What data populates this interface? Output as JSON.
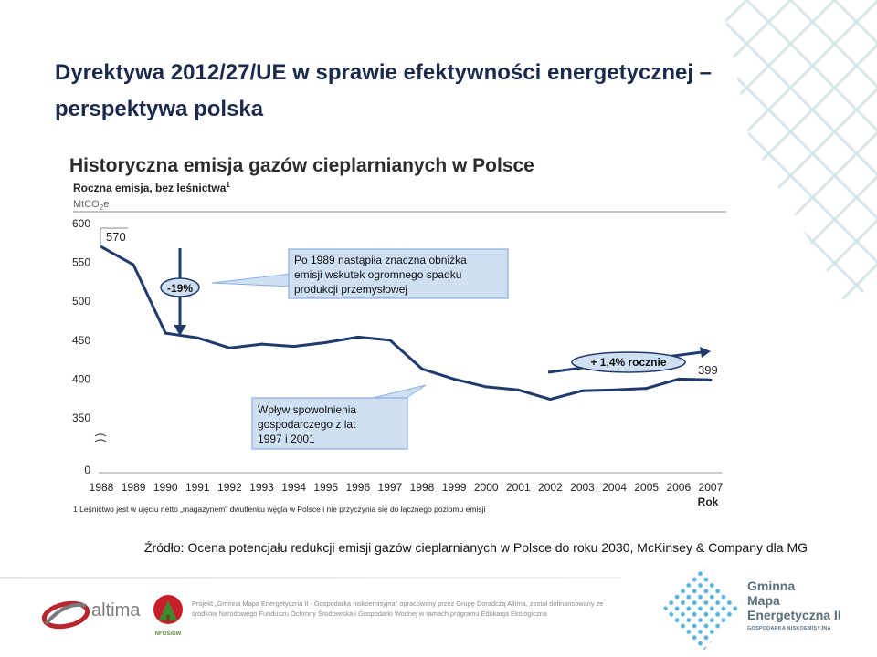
{
  "slide": {
    "title": "Dyrektywa 2012/27/UE w sprawie efektywności energetycznej – perspektywa polska",
    "subtitle": "Historyczna emisja gazów cieplarnianych w Polsce",
    "source": "Źródło: Ocena potencjału redukcji emisji gazów cieplarnianych w Polsce do roku 2030, McKinsey & Company dla MG"
  },
  "chart_data": {
    "type": "line",
    "title": "Roczna emisja, bez leśnictwa",
    "title_superscript": "1",
    "unit_prefix": "MtCO",
    "unit_sub": "2",
    "unit_suffix": "e",
    "xlabel": "Rok",
    "x": [
      1988,
      1989,
      1990,
      1991,
      1992,
      1993,
      1994,
      1995,
      1996,
      1997,
      1998,
      1999,
      2000,
      2001,
      2002,
      2003,
      2004,
      2005,
      2006,
      2007
    ],
    "x_tick_labels": [
      "1988",
      "1989",
      "1990",
      "1991",
      "1992",
      "1993",
      "1994",
      "1995",
      "1996",
      "1997",
      "1998",
      "1999",
      "2000",
      "2001",
      "2002",
      "2003",
      "2004",
      "2005",
      "2006",
      "2007"
    ],
    "series": [
      {
        "values": [
          570,
          547,
          459,
          453,
          440,
          445,
          442,
          447,
          454,
          450,
          413,
          400,
          390,
          386,
          374,
          385,
          386,
          388,
          400,
          399
        ],
        "color": "#1f3a6b"
      }
    ],
    "y_ticks": [
      600,
      550,
      500,
      450,
      400,
      350,
      0
    ],
    "y_tick_labels": [
      "600",
      "550",
      "500",
      "450",
      "400",
      "350",
      "0"
    ],
    "ylim": [
      0,
      600
    ],
    "axis_break_between": [
      0,
      350
    ],
    "point_labels": {
      "first": "570",
      "last": "399"
    },
    "annotations": {
      "decline_label": "-19%",
      "decline_note": [
        "Po 1989 nastąpiła znaczna obniżka",
        "emisji wskutek ogromnego spadku",
        "produkcji przemysłowej"
      ],
      "slowdown_note": [
        "Wpływ spowolnienia",
        "gospodarczego z lat",
        "1997 i 2001"
      ],
      "growth_label": "+ 1,4% rocznie"
    },
    "footnote": "1 Leśnictwo jest w ujęciu netto „magazynem\" dwutlenku węgla w Polsce i nie przyczynia się do łącznego poziomu emisji",
    "colors": {
      "line": "#1f3a6b",
      "callout_fill": "#cfe0f3",
      "callout_border": "#8aaee0",
      "arrow": "#1f3a6b"
    }
  },
  "footer": {
    "altima_logo_text": "altima",
    "nfos_logo_text": "NFOŚiGW",
    "project_text": "Projekt „Gminna Mapa Energetyczna II - Gospodarka niskoemisyjna\" opracowany przez Grupę Doradczą Altima, został dofinansowany ze środków Narodowego Funduszu Ochrony Środowiska i Gospodarki Wodnej w ramach programu Edukacja Ekologiczna",
    "gmg_logo_name": "Gminna\nMapa\nEnergetyczna II",
    "gmg_logo_tag": "GOSPODARKA NISKOEMISYJNA"
  }
}
